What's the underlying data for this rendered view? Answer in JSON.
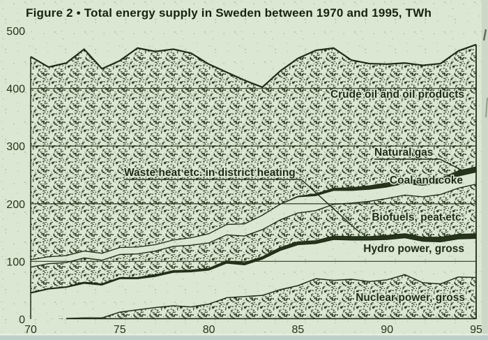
{
  "title": "Figure 2 • Total energy supply in Sweden between 1970 and 1995, TWh",
  "colors": {
    "paper": "#dbe7d2",
    "ink": "#1e2c17",
    "solid_band": "#26341c",
    "bottom_strip": "#b9cdc9",
    "right_strip": "#ccd6c6"
  },
  "chart_data": {
    "type": "area",
    "stacked": true,
    "title": "Figure 2 • Total energy supply in Sweden between 1970 and 1995, TWh",
    "unit": "TWh",
    "xlabel": "",
    "ylabel": "",
    "x": [
      1970,
      1971,
      1972,
      1973,
      1974,
      1975,
      1976,
      1977,
      1978,
      1979,
      1980,
      1981,
      1982,
      1983,
      1984,
      1985,
      1986,
      1987,
      1988,
      1989,
      1990,
      1991,
      1992,
      1993,
      1994,
      1995
    ],
    "x_ticks": {
      "values": [
        1970,
        1975,
        1980,
        1985,
        1990,
        1995
      ],
      "labels": [
        "70",
        "75",
        "80",
        "85",
        "90",
        "95"
      ]
    },
    "y_axis": {
      "min": 0,
      "max": 500,
      "tick_interval": 100,
      "tick_labels": [
        "0",
        "100",
        "200",
        "300",
        "400",
        "500"
      ],
      "gridlines": [
        100,
        200,
        300,
        400
      ]
    },
    "legend_position": "labels-inside-plot",
    "grid": true,
    "series": [
      {
        "key": "nuclear",
        "label": "Nuclear power, gross",
        "texture": "stipple",
        "values": [
          0,
          0,
          1,
          2,
          2,
          12,
          16,
          20,
          23,
          21,
          26,
          37,
          39,
          41,
          51,
          58,
          70,
          67,
          69,
          65,
          68,
          77,
          63,
          61,
          73,
          72
        ]
      },
      {
        "key": "hydro",
        "label": "Hydro power, gross",
        "texture": "plain",
        "values": [
          45,
          52,
          54,
          60,
          57,
          58,
          54,
          54,
          58,
          61,
          59,
          60,
          55,
          63,
          68,
          71,
          61,
          71,
          68,
          72,
          70,
          64,
          72,
          73,
          66,
          68
        ]
      },
      {
        "key": "waste_heat",
        "label": "Waste heat etc. in district heating",
        "texture": "solid",
        "values": [
          1,
          1,
          1,
          2,
          2,
          2,
          2,
          3,
          3,
          3,
          3,
          4,
          4,
          4,
          5,
          5,
          5,
          6,
          6,
          6,
          7,
          7,
          7,
          8,
          8,
          8
        ]
      },
      {
        "key": "biofuels",
        "label": "Biofuels, peat etc.",
        "texture": "stipple",
        "values": [
          44,
          43,
          42,
          42,
          41,
          40,
          41,
          41,
          42,
          43,
          44,
          45,
          46,
          47,
          48,
          50,
          52,
          55,
          58,
          61,
          64,
          67,
          70,
          74,
          80,
          86
        ]
      },
      {
        "key": "coal",
        "label": "Coal and coke",
        "texture": "plain",
        "values": [
          13,
          12,
          12,
          12,
          12,
          12,
          12,
          11,
          11,
          13,
          16,
          18,
          21,
          25,
          27,
          28,
          26,
          24,
          22,
          21,
          20,
          20,
          20,
          20,
          21,
          21
        ]
      },
      {
        "key": "natural_gas",
        "label": "Natural gas",
        "texture": "solid",
        "values": [
          0,
          0,
          0,
          0,
          0,
          0,
          0,
          0,
          0,
          0,
          0,
          0,
          0,
          0,
          0,
          1,
          3,
          4,
          5,
          6,
          7,
          8,
          8,
          8,
          9,
          9
        ]
      },
      {
        "key": "crude_oil",
        "label": "Crude oil and oil products",
        "texture": "stipple",
        "values": [
          352,
          329,
          334,
          350,
          320,
          324,
          345,
          335,
          331,
          320,
          294,
          264,
          249,
          222,
          231,
          239,
          249,
          243,
          221,
          212,
          206,
          201,
          200,
          199,
          208,
          212
        ]
      }
    ],
    "totals": [
      455,
      437,
      444,
      468,
      434,
      448,
      470,
      464,
      468,
      461,
      442,
      428,
      414,
      402,
      430,
      452,
      466,
      470,
      449,
      443,
      442,
      444,
      440,
      443,
      465,
      476
    ],
    "annotations": [
      {
        "target": "waste_heat",
        "text": "Waste heat etc. in district heating",
        "style": "label-with-leader-line"
      },
      {
        "target": "natural_gas",
        "text": "Natural gas",
        "style": "label-with-leader-line"
      }
    ]
  }
}
